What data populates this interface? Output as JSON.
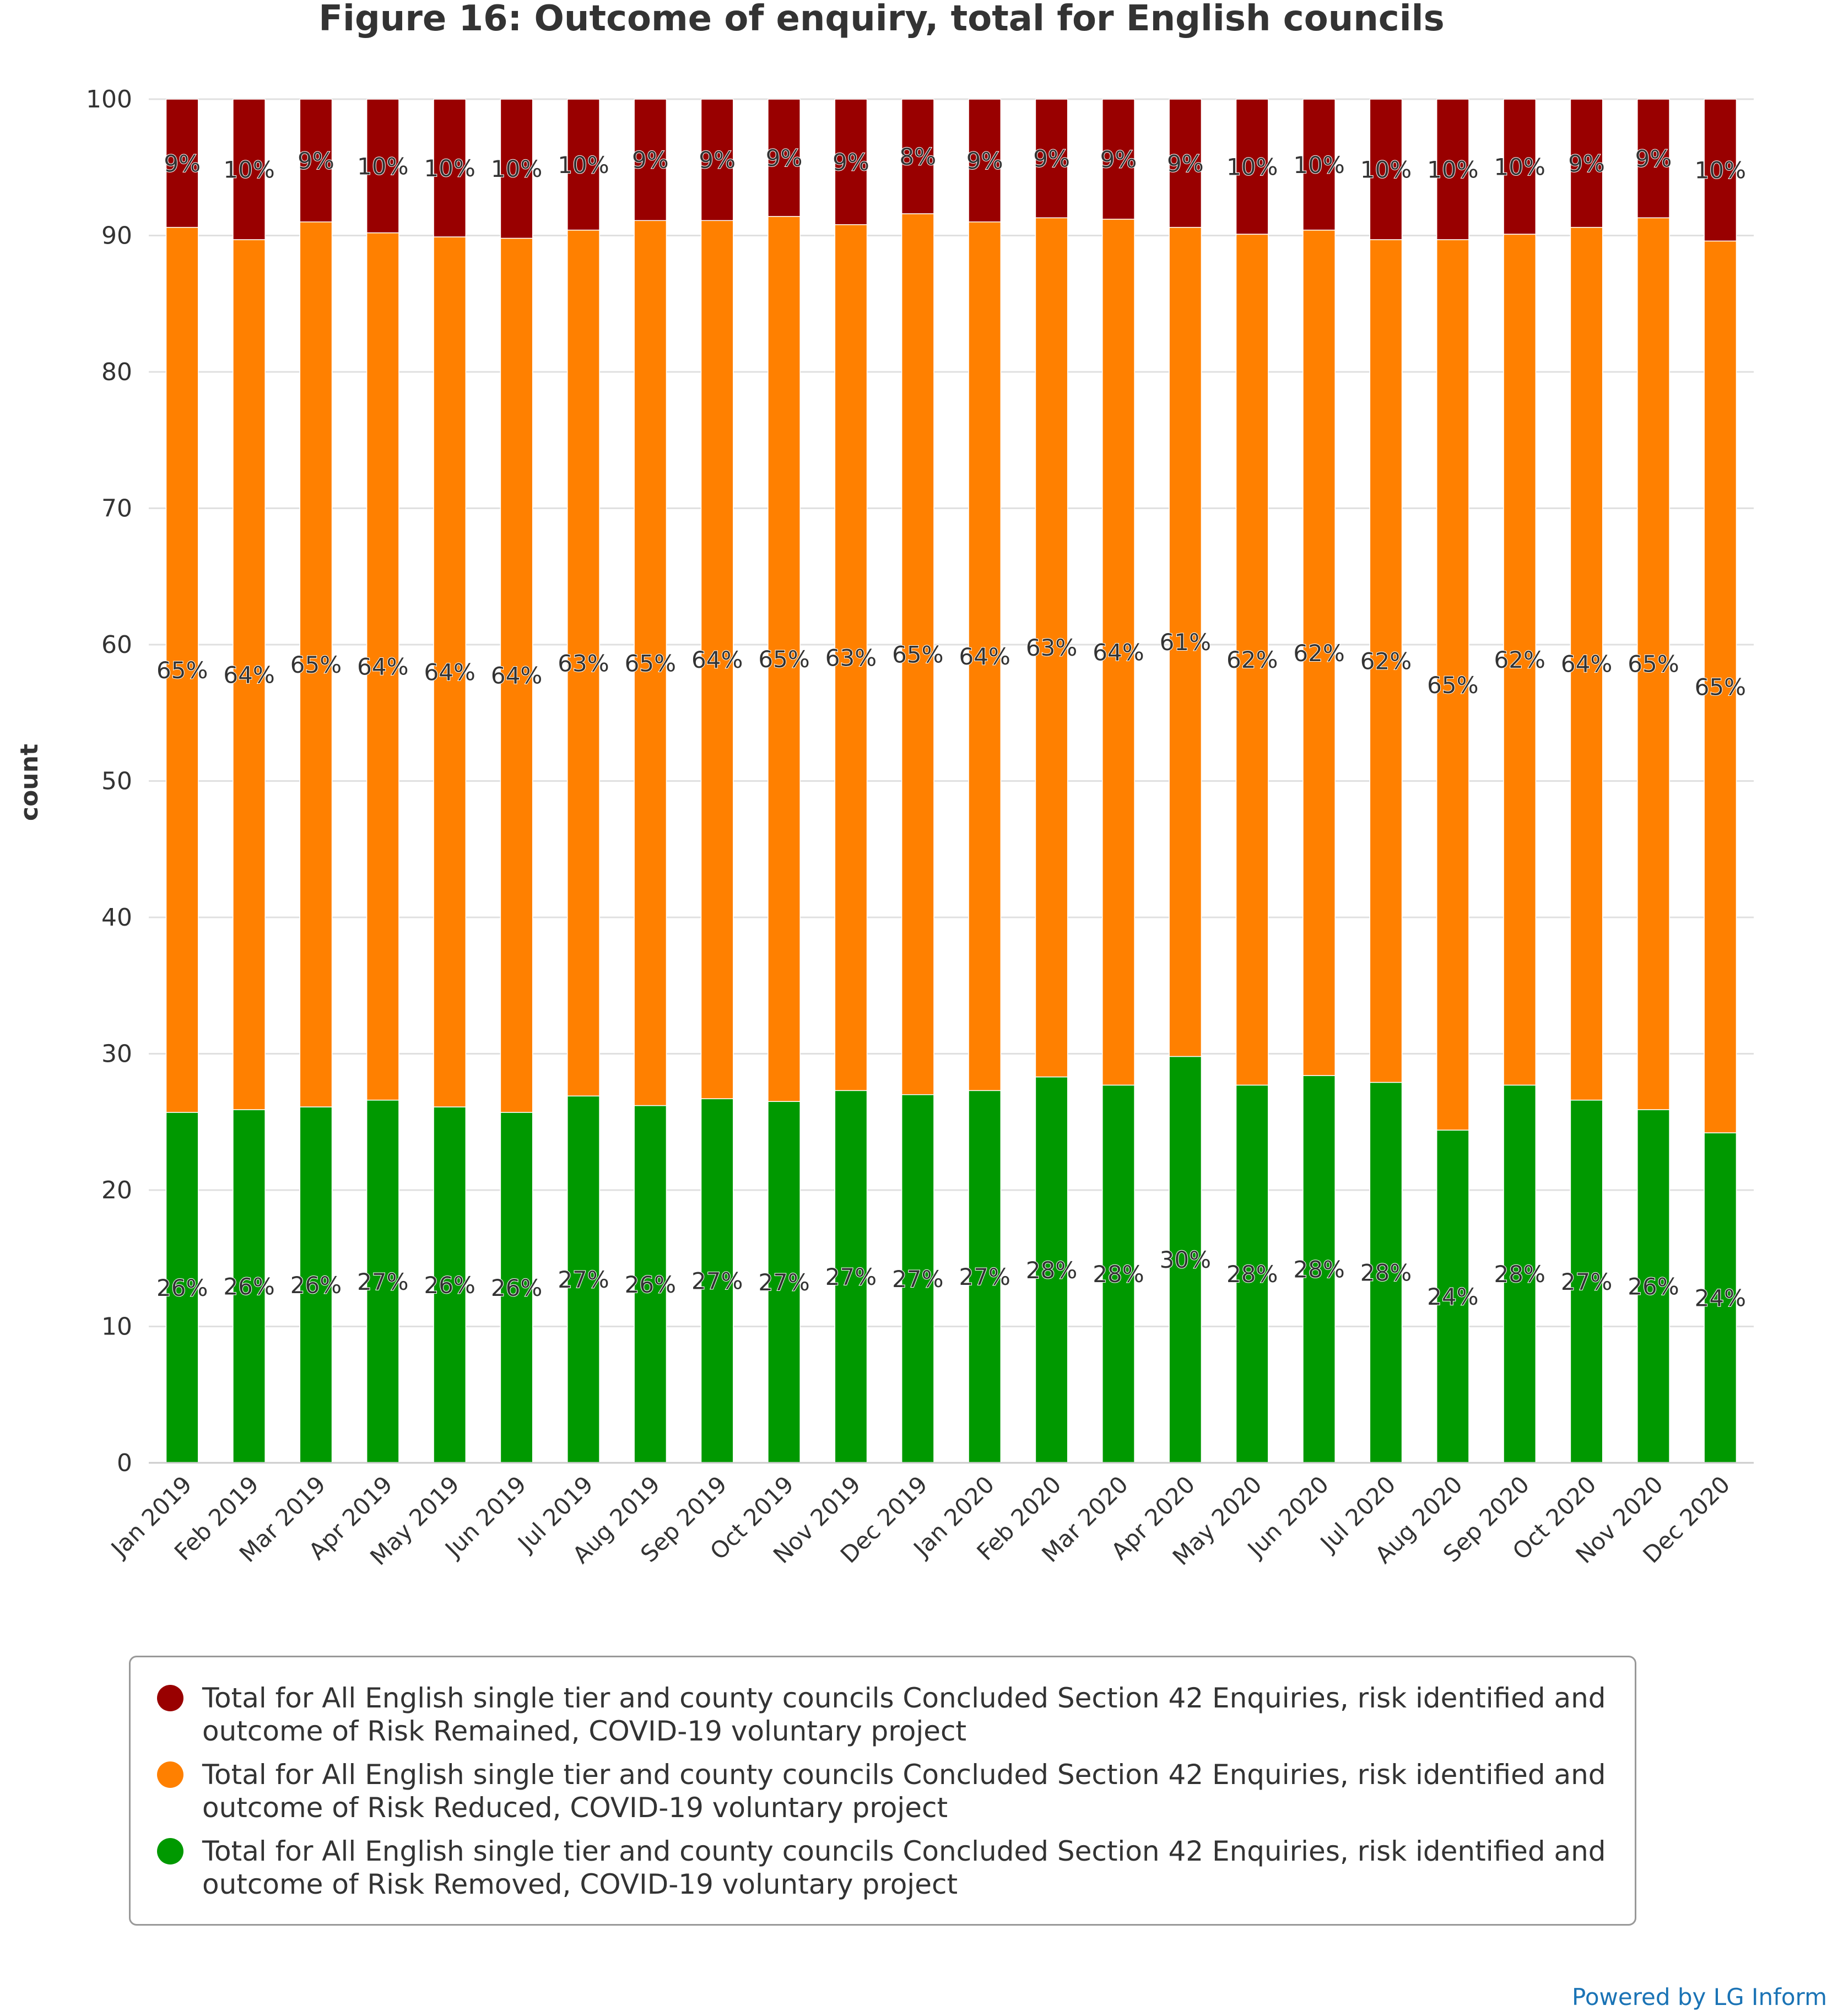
{
  "chart_data": {
    "type": "bar",
    "stacked": true,
    "title": "Figure 16: Outcome of enquiry, total for English councils",
    "ylabel": "count",
    "ylim": [
      0,
      100
    ],
    "yticks": [
      0,
      10,
      20,
      30,
      40,
      50,
      60,
      70,
      80,
      90,
      100
    ],
    "grid": true,
    "legend_position": "bottom",
    "categories": [
      "Jan 2019",
      "Feb 2019",
      "Mar 2019",
      "Apr 2019",
      "May 2019",
      "Jun 2019",
      "Jul 2019",
      "Aug 2019",
      "Sep 2019",
      "Oct 2019",
      "Nov 2019",
      "Dec 2019",
      "Jan 2020",
      "Feb 2020",
      "Mar 2020",
      "Apr 2020",
      "May 2020",
      "Jun 2020",
      "Jul 2020",
      "Aug 2020",
      "Sep 2020",
      "Oct 2020",
      "Nov 2020",
      "Dec 2020"
    ],
    "series": [
      {
        "name": "Total for All English single tier and county councils Concluded Section 42 Enquiries, risk identified and outcome of Risk Removed, COVID-19 voluntary project",
        "color": "#009900",
        "values": [
          25.7,
          25.9,
          26.1,
          26.6,
          26.1,
          25.7,
          26.9,
          26.2,
          26.7,
          26.5,
          27.3,
          27.0,
          27.3,
          28.3,
          27.7,
          29.8,
          27.7,
          28.4,
          27.9,
          24.4,
          27.7,
          26.6,
          25.9,
          24.2
        ],
        "labels": [
          "26%",
          "26%",
          "26%",
          "27%",
          "26%",
          "26%",
          "27%",
          "26%",
          "27%",
          "27%",
          "27%",
          "27%",
          "27%",
          "28%",
          "28%",
          "30%",
          "28%",
          "28%",
          "28%",
          "24%",
          "28%",
          "27%",
          "26%",
          "24%"
        ]
      },
      {
        "name": "Total for All English single tier and county councils Concluded Section 42 Enquiries, risk identified and outcome of Risk Reduced, COVID-19 voluntary project",
        "color": "#ff8000",
        "values": [
          64.9,
          63.8,
          64.9,
          63.6,
          63.8,
          64.1,
          63.5,
          64.9,
          64.4,
          64.9,
          63.5,
          64.6,
          63.7,
          63.0,
          63.5,
          60.8,
          62.4,
          62.0,
          61.8,
          65.3,
          62.4,
          64.0,
          65.4,
          65.4
        ],
        "labels": [
          "65%",
          "64%",
          "65%",
          "64%",
          "64%",
          "64%",
          "63%",
          "65%",
          "64%",
          "65%",
          "63%",
          "65%",
          "64%",
          "63%",
          "64%",
          "61%",
          "62%",
          "62%",
          "62%",
          "65%",
          "62%",
          "64%",
          "65%",
          "65%"
        ]
      },
      {
        "name": "Total for All English single tier and county councils Concluded Section 42 Enquiries, risk identified and outcome of Risk Remained, COVID-19 voluntary project",
        "color": "#990000",
        "values": [
          9.4,
          10.3,
          9.0,
          9.8,
          10.1,
          10.2,
          9.6,
          8.9,
          8.9,
          8.6,
          9.2,
          8.4,
          9.0,
          8.7,
          8.8,
          9.4,
          9.9,
          9.6,
          10.3,
          10.3,
          9.9,
          9.4,
          8.7,
          10.4
        ],
        "labels": [
          "9%",
          "10%",
          "9%",
          "10%",
          "10%",
          "10%",
          "10%",
          "9%",
          "9%",
          "9%",
          "9%",
          "8%",
          "9%",
          "9%",
          "9%",
          "9%",
          "10%",
          "10%",
          "10%",
          "10%",
          "10%",
          "9%",
          "9%",
          "10%"
        ]
      }
    ],
    "legend_order": [
      2,
      1,
      0
    ]
  },
  "footer": {
    "powered_by": "Powered by LG Inform"
  }
}
